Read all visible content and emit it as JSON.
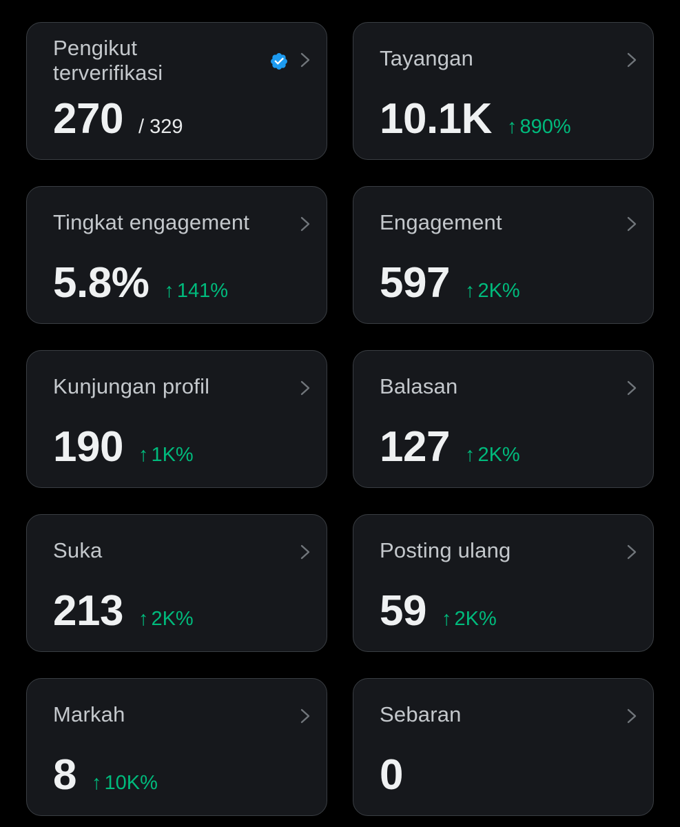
{
  "colors": {
    "background": "#000000",
    "card": "#16181c",
    "card_border": "#3a3e43",
    "positive": "#00ba7c",
    "verified": "#1d9bf0"
  },
  "cards": [
    {
      "title": "Pengikut terverifikasi",
      "value": "270",
      "total": "/ 329",
      "verified_icon": "verified-badge-icon"
    },
    {
      "title": "Tayangan",
      "value": "10.1K",
      "change": "890%"
    },
    {
      "title": "Tingkat engagement",
      "value": "5.8%",
      "change": "141%"
    },
    {
      "title": "Engagement",
      "value": "597",
      "change": "2K%"
    },
    {
      "title": "Kunjungan profil",
      "value": "190",
      "change": "1K%"
    },
    {
      "title": "Balasan",
      "value": "127",
      "change": "2K%"
    },
    {
      "title": "Suka",
      "value": "213",
      "change": "2K%"
    },
    {
      "title": "Posting ulang",
      "value": "59",
      "change": "2K%"
    },
    {
      "title": "Markah",
      "value": "8",
      "change": "10K%"
    },
    {
      "title": "Sebaran",
      "value": "0"
    }
  ],
  "arrow_glyph": "↑"
}
